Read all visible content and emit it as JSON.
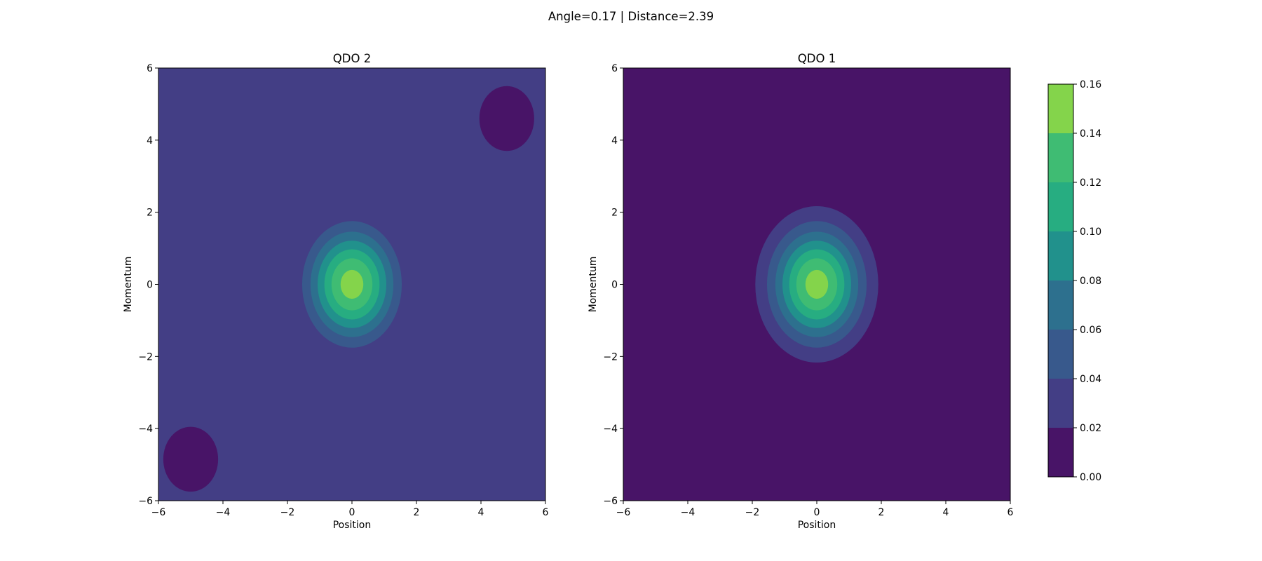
{
  "chart_data": {
    "type": "contour",
    "suptitle": "Angle=0.17 | Distance=2.39",
    "colormap": "viridis",
    "levels": [
      0.0,
      0.02,
      0.04,
      0.06,
      0.08,
      0.1,
      0.12,
      0.14,
      0.16
    ],
    "level_labels": [
      "0.00",
      "0.02",
      "0.04",
      "0.06",
      "0.08",
      "0.10",
      "0.12",
      "0.14",
      "0.16"
    ],
    "band_colors": [
      "#481467",
      "#433e85",
      "#38598c",
      "#2d708e",
      "#21918c",
      "#27ad81",
      "#3fbc73",
      "#84d44b",
      "#dde318"
    ],
    "panels": [
      {
        "title": "QDO 2",
        "xlabel": "Position",
        "ylabel": "Momentum",
        "xlim": [
          -6,
          6
        ],
        "ylim": [
          -6,
          6
        ],
        "xticks": [
          -6,
          -4,
          -2,
          0,
          2,
          4,
          6
        ],
        "yticks": [
          -6,
          -4,
          -2,
          0,
          2,
          4,
          6
        ],
        "xtick_labels": [
          "−6",
          "−4",
          "−2",
          "0",
          "2",
          "4",
          "6"
        ],
        "ytick_labels": [
          "−6",
          "−4",
          "−2",
          "0",
          "2",
          "4",
          "6"
        ],
        "background_level": 0.02,
        "peak": {
          "x": 0,
          "y": 0,
          "value": 0.15,
          "sigma_x": 0.95,
          "sigma_y": 1.08
        },
        "holes": [
          {
            "x": 4.8,
            "y": 4.6,
            "rx": 0.85,
            "ry": 0.9,
            "level": 0.0
          },
          {
            "x": -5.0,
            "y": -4.85,
            "rx": 0.85,
            "ry": 0.9,
            "level": 0.0
          }
        ]
      },
      {
        "title": "QDO 1",
        "xlabel": "Position",
        "ylabel": "Momentum",
        "xlim": [
          -6,
          6
        ],
        "ylim": [
          -6,
          6
        ],
        "xticks": [
          -6,
          -4,
          -2,
          0,
          2,
          4,
          6
        ],
        "yticks": [
          -6,
          -4,
          -2,
          0,
          2,
          4,
          6
        ],
        "xtick_labels": [
          "−6",
          "−4",
          "−2",
          "0",
          "2",
          "4",
          "6"
        ],
        "ytick_labels": [
          "−6",
          "−4",
          "−2",
          "0",
          "2",
          "4",
          "6"
        ],
        "background_level": 0.0,
        "peak": {
          "x": 0,
          "y": 0,
          "value": 0.15,
          "sigma_x": 0.95,
          "sigma_y": 1.08
        },
        "holes": []
      }
    ],
    "grid": false,
    "colorbar": true
  }
}
